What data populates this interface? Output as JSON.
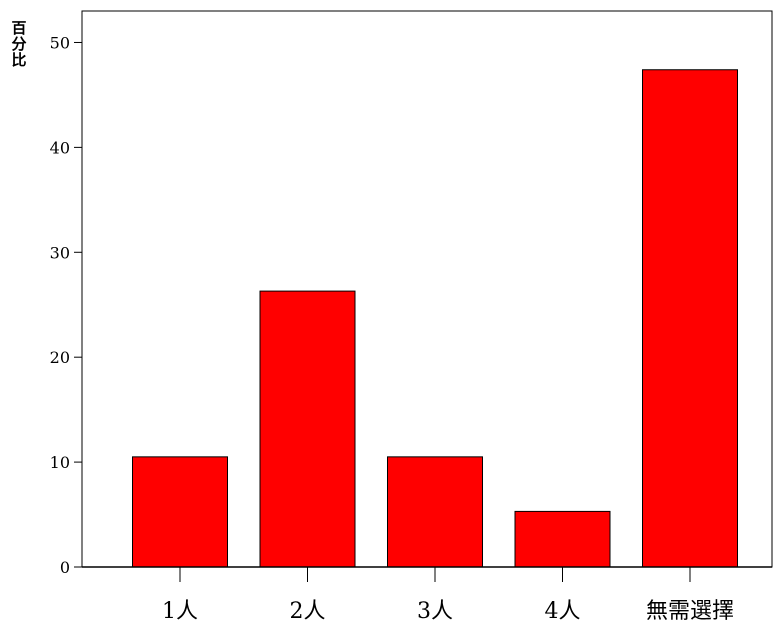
{
  "chart_data": {
    "type": "bar",
    "categories": [
      "1人",
      "2人",
      "3人",
      "4人",
      "無需選擇"
    ],
    "values": [
      10.5,
      26.3,
      10.5,
      5.3,
      47.4
    ],
    "ylabel": "百分比",
    "xlabel": "",
    "ylim": [
      0,
      53
    ],
    "yticks": [
      0,
      10,
      20,
      30,
      40,
      50
    ],
    "ytick_labels": [
      "0",
      "10",
      "20",
      "30",
      "40",
      "50"
    ],
    "bar_color": "#ff0000",
    "grid": false
  }
}
